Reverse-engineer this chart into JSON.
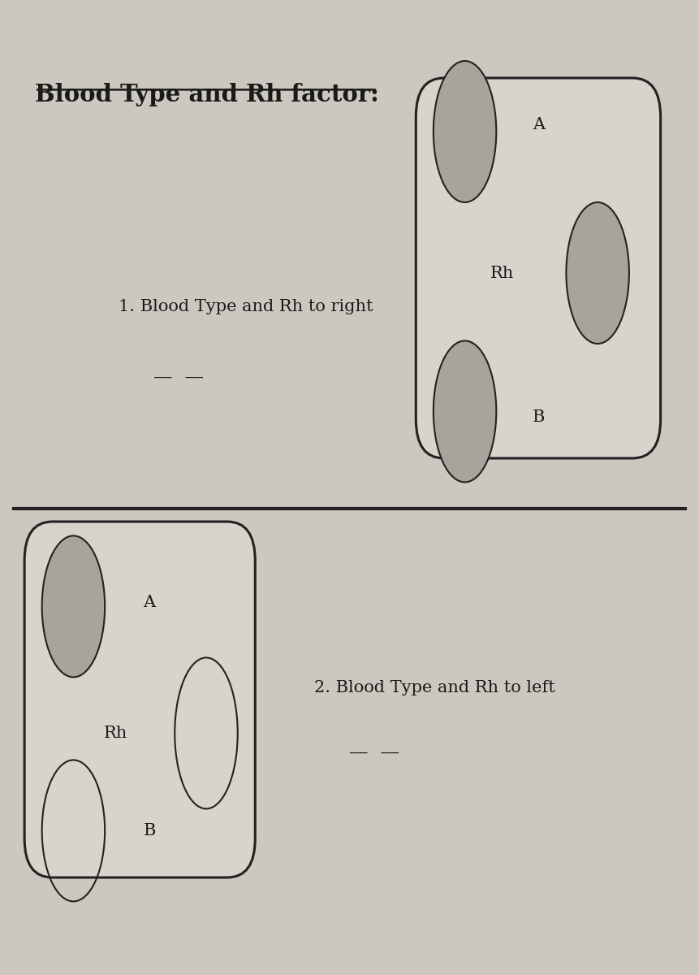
{
  "title": "Blood Type and Rh factor:",
  "bg_color": "#ccc8c0",
  "box_fill_color": "#d8d4cc",
  "ellipse_fill_color": "#a8a49c",
  "ellipse_edge_color": "#222222",
  "box_edge_color": "#222222",
  "text_color": "#1a1a1a",
  "divider_color": "#222222",
  "section1_label": "1. Blood Type and Rh to right",
  "section2_label": "2. Blood Type and Rh to left",
  "blank_line": "—  —"
}
